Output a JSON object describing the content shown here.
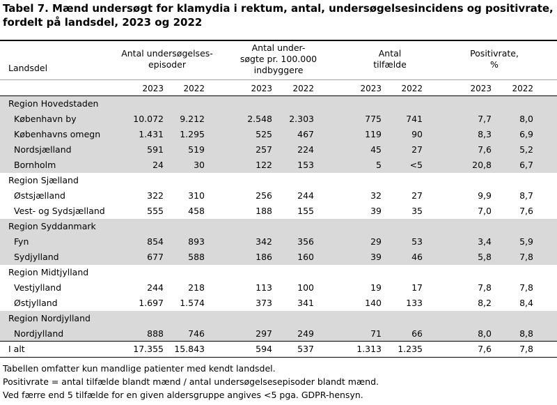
{
  "title": "Tabel 7. Mænd undersøgt for klamydia i rektum, antal, undersøgelsesincidens og positivrate, fordelt på landsdel, 2023 og 2022",
  "header": {
    "landsdel": "Landsdel",
    "col1": [
      "Antal undersøgelses-",
      "episoder"
    ],
    "col2": [
      "Antal under-",
      "søgte pr. 100.000",
      "indbyggere"
    ],
    "col3": [
      "Antal",
      "tilfælde"
    ],
    "col4": [
      "Positivrate,",
      "%"
    ],
    "years": [
      "2023",
      "2022",
      "2023",
      "2022",
      "2023",
      "2022",
      "2023",
      "2022"
    ]
  },
  "rows": [
    {
      "label": "Region Hovedstaden",
      "type": "region",
      "values": [
        "",
        "",
        "",
        "",
        "",
        "",
        "",
        ""
      ]
    },
    {
      "label": "København by",
      "type": "sub",
      "values": [
        "10.072",
        "9.212",
        "2.548",
        "2.303",
        "775",
        "741",
        "7,7",
        "8,0"
      ]
    },
    {
      "label": "Københavns omegn",
      "type": "sub",
      "values": [
        "1.431",
        "1.295",
        "525",
        "467",
        "119",
        "90",
        "8,3",
        "6,9"
      ]
    },
    {
      "label": "Nordsjælland",
      "type": "sub",
      "values": [
        "591",
        "519",
        "257",
        "224",
        "45",
        "27",
        "7,6",
        "5,2"
      ]
    },
    {
      "label": "Bornholm",
      "type": "sub",
      "values": [
        "24",
        "30",
        "122",
        "153",
        "5",
        "<5",
        "20,8",
        "6,7"
      ]
    },
    {
      "label": "Region Sjælland",
      "type": "region",
      "values": [
        "",
        "",
        "",
        "",
        "",
        "",
        "",
        ""
      ]
    },
    {
      "label": "Østsjælland",
      "type": "sub",
      "values": [
        "322",
        "310",
        "256",
        "244",
        "32",
        "27",
        "9,9",
        "8,7"
      ]
    },
    {
      "label": "Vest- og Sydsjælland",
      "type": "sub",
      "values": [
        "555",
        "458",
        "188",
        "155",
        "39",
        "35",
        "7,0",
        "7,6"
      ]
    },
    {
      "label": "Region Syddanmark",
      "type": "region",
      "values": [
        "",
        "",
        "",
        "",
        "",
        "",
        "",
        ""
      ]
    },
    {
      "label": "Fyn",
      "type": "sub",
      "values": [
        "854",
        "893",
        "342",
        "356",
        "29",
        "53",
        "3,4",
        "5,9"
      ]
    },
    {
      "label": "Sydjylland",
      "type": "sub",
      "values": [
        "677",
        "588",
        "186",
        "160",
        "39",
        "46",
        "5,8",
        "7,8"
      ]
    },
    {
      "label": "Region Midtjylland",
      "type": "region",
      "values": [
        "",
        "",
        "",
        "",
        "",
        "",
        "",
        ""
      ]
    },
    {
      "label": "Vestjylland",
      "type": "sub",
      "values": [
        "244",
        "218",
        "113",
        "100",
        "19",
        "17",
        "7,8",
        "7,8"
      ]
    },
    {
      "label": "Østjylland",
      "type": "sub",
      "values": [
        "1.697",
        "1.574",
        "373",
        "341",
        "140",
        "133",
        "8,2",
        "8,4"
      ]
    },
    {
      "label": "Region Nordjylland",
      "type": "region",
      "values": [
        "",
        "",
        "",
        "",
        "",
        "",
        "",
        ""
      ]
    },
    {
      "label": "Nordjylland",
      "type": "sub",
      "values": [
        "888",
        "746",
        "297",
        "249",
        "71",
        "66",
        "8,0",
        "8,8"
      ]
    },
    {
      "label": "I alt",
      "type": "total",
      "values": [
        "17.355",
        "15.843",
        "594",
        "537",
        "1.313",
        "1.235",
        "7,6",
        "7,8"
      ]
    }
  ],
  "footnotes": [
    "Tabellen omfatter kun mandlige patienter med kendt landsdel.",
    "Positivrate = antal tilfælde blandt mænd / antal undersøgelsesepisoder blandt mænd.",
    "Ved færre end 5 tilfælde for en given aldersgruppe angives <5 pga. GDPR-hensyn."
  ],
  "colors": {
    "band": "#d9d9d9",
    "rule": "#000000"
  }
}
